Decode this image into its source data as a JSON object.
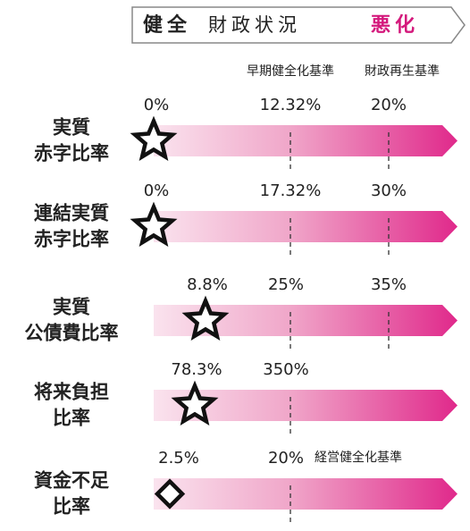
{
  "header": {
    "left": "健全",
    "middle": "財政状況",
    "right": "悪化"
  },
  "threshold_labels": [
    "早期健全化基準",
    "財政再生基準"
  ],
  "rows": [
    {
      "label": [
        "実質",
        "赤字比率"
      ],
      "value": "0%",
      "thresholds": [
        "12.32%",
        "20%"
      ],
      "marker": "star"
    },
    {
      "label": [
        "連結実質",
        "赤字比率"
      ],
      "value": "0%",
      "thresholds": [
        "17.32%",
        "30%"
      ],
      "marker": "star"
    },
    {
      "label": [
        "実質",
        "公債費比率"
      ],
      "value": "8.8%",
      "thresholds": [
        "25%",
        "35%"
      ],
      "marker": "star"
    },
    {
      "label": [
        "将来負担",
        "比率"
      ],
      "value": "78.3%",
      "thresholds": [
        "350%"
      ],
      "marker": "star"
    },
    {
      "label": [
        "資金不足",
        "比率"
      ],
      "value": "2.5%",
      "thresholds": [
        "20%"
      ],
      "note": "経営健全化基準",
      "marker": "diamond"
    }
  ]
}
